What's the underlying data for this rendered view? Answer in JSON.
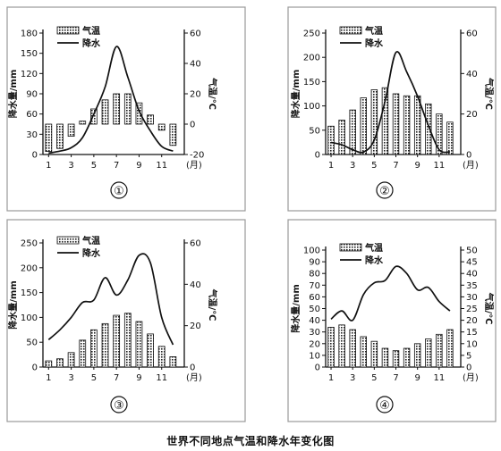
{
  "caption": "世界不同地点气温和降水年变化图",
  "legend": {
    "temp": "气温",
    "precip": "降水"
  },
  "chart_data": [
    {
      "type": "bar",
      "panel": "①",
      "months": [
        1,
        2,
        3,
        4,
        5,
        6,
        7,
        8,
        9,
        10,
        11,
        12
      ],
      "x_ticks": [
        "1",
        "3",
        "5",
        "7",
        "9",
        "11",
        "(月)"
      ],
      "left_axis": {
        "label": "降水量/mm",
        "ticks": [
          0,
          30,
          60,
          90,
          120,
          150,
          180
        ],
        "lim": [
          0,
          180
        ]
      },
      "right_axis": {
        "label": "气温/℃",
        "ticks": [
          -20,
          0,
          20,
          40,
          60
        ],
        "lim": [
          -20,
          60
        ]
      },
      "series": [
        {
          "name": "气温",
          "kind": "bar",
          "axis": "right",
          "values": [
            -18,
            -16,
            -8,
            2,
            10,
            16,
            20,
            20,
            14,
            6,
            -4,
            -14
          ]
        },
        {
          "name": "降水",
          "kind": "line",
          "axis": "left",
          "values": [
            2,
            5,
            10,
            25,
            60,
            100,
            160,
            115,
            65,
            35,
            12,
            5
          ]
        }
      ]
    },
    {
      "type": "bar",
      "panel": "②",
      "months": [
        1,
        2,
        3,
        4,
        5,
        6,
        7,
        8,
        9,
        10,
        11,
        12
      ],
      "x_ticks": [
        "1",
        "3",
        "5",
        "7",
        "9",
        "11",
        "(月)"
      ],
      "left_axis": {
        "label": "降水量/mm",
        "ticks": [
          0,
          50,
          100,
          150,
          200,
          250
        ],
        "lim": [
          0,
          250
        ]
      },
      "right_axis": {
        "label": "气温/℃",
        "ticks": [
          0,
          20,
          40,
          60
        ],
        "lim": [
          0,
          60
        ]
      },
      "series": [
        {
          "name": "气温",
          "kind": "bar",
          "axis": "right",
          "values": [
            14,
            17,
            22,
            28,
            32,
            33,
            30,
            29,
            29,
            25,
            20,
            16
          ]
        },
        {
          "name": "降水",
          "kind": "line",
          "axis": "left",
          "values": [
            25,
            20,
            10,
            5,
            30,
            110,
            210,
            170,
            120,
            60,
            10,
            5
          ]
        }
      ]
    },
    {
      "type": "bar",
      "panel": "③",
      "months": [
        1,
        2,
        3,
        4,
        5,
        6,
        7,
        8,
        9,
        10,
        11,
        12
      ],
      "x_ticks": [
        "1",
        "3",
        "5",
        "7",
        "9",
        "11",
        "(月)"
      ],
      "left_axis": {
        "label": "降水量/mm",
        "ticks": [
          0,
          50,
          100,
          150,
          200,
          250
        ],
        "lim": [
          0,
          250
        ]
      },
      "right_axis": {
        "label": "气温/℃",
        "ticks": [
          0,
          20,
          40,
          60
        ],
        "lim": [
          0,
          60
        ]
      },
      "series": [
        {
          "name": "气温",
          "kind": "bar",
          "axis": "right",
          "values": [
            3,
            4,
            7,
            13,
            18,
            21,
            25,
            26,
            22,
            16,
            10,
            5
          ]
        },
        {
          "name": "降水",
          "kind": "line",
          "axis": "left",
          "values": [
            55,
            75,
            100,
            130,
            135,
            180,
            145,
            175,
            225,
            210,
            100,
            45
          ]
        }
      ]
    },
    {
      "type": "bar",
      "panel": "④",
      "months": [
        1,
        2,
        3,
        4,
        5,
        6,
        7,
        8,
        9,
        10,
        11,
        12
      ],
      "x_ticks": [
        "1",
        "3",
        "5",
        "7",
        "9",
        "11",
        "(月)"
      ],
      "left_axis": {
        "label": "降水量/mm",
        "ticks": [
          0,
          10,
          20,
          30,
          40,
          50,
          60,
          70,
          80,
          90,
          100
        ],
        "lim": [
          0,
          100
        ]
      },
      "right_axis": {
        "label": "气温/℃",
        "ticks": [
          0,
          5,
          10,
          15,
          20,
          25,
          30,
          35,
          40,
          45,
          50
        ],
        "lim": [
          0,
          50
        ]
      },
      "series": [
        {
          "name": "气温",
          "kind": "bar",
          "axis": "right",
          "values": [
            17,
            18,
            16,
            13,
            11,
            8,
            7,
            8,
            10,
            12,
            14,
            16
          ]
        },
        {
          "name": "降水",
          "kind": "line",
          "axis": "left",
          "values": [
            41,
            48,
            40,
            62,
            72,
            74,
            86,
            80,
            66,
            68,
            56,
            48
          ]
        }
      ]
    }
  ]
}
